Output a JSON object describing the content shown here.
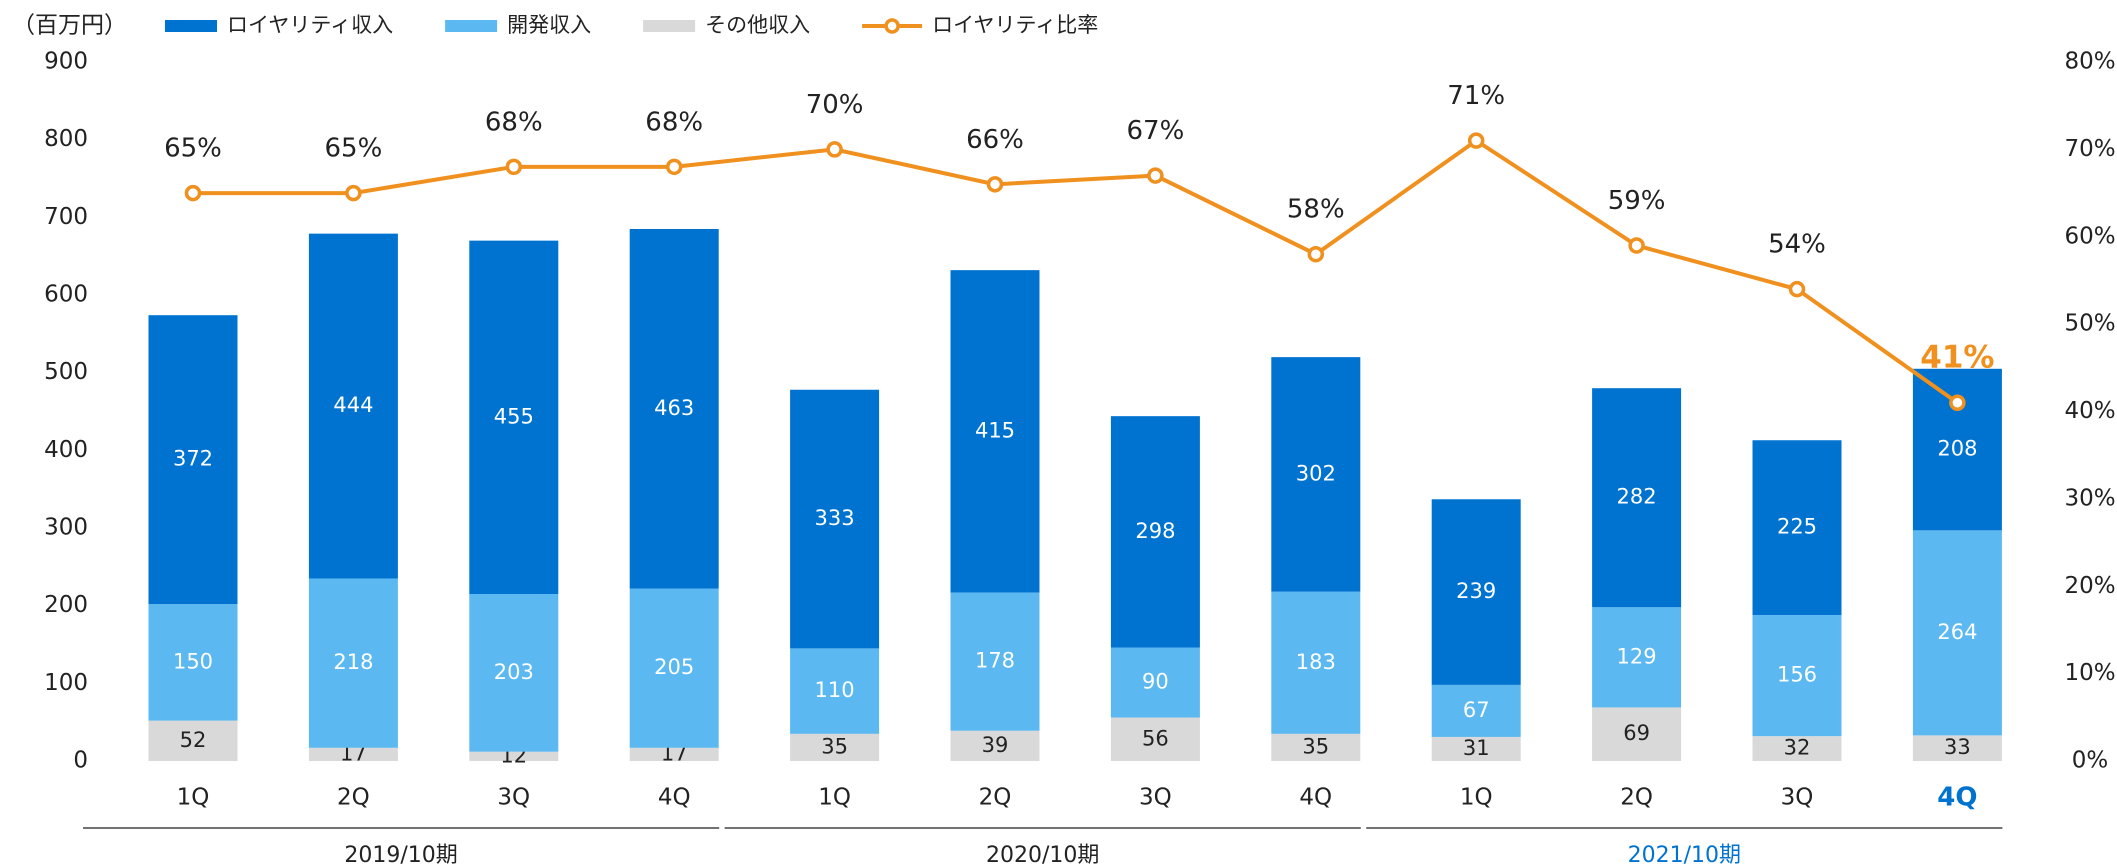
{
  "chart_data": {
    "type": "bar",
    "stacked": true,
    "y_label": "（百万円）",
    "categories": [
      "1Q",
      "2Q",
      "3Q",
      "4Q",
      "1Q",
      "2Q",
      "3Q",
      "4Q",
      "1Q",
      "2Q",
      "3Q",
      "4Q"
    ],
    "groups": [
      "2019/10期",
      "2020/10期",
      "2021/10期"
    ],
    "series": [
      {
        "name": "ロイヤリティ収入",
        "color": "#0073d0",
        "values": [
          372,
          444,
          455,
          463,
          333,
          415,
          298,
          302,
          239,
          282,
          225,
          208
        ]
      },
      {
        "name": "開発収入",
        "color": "#5bb8f0",
        "values": [
          150,
          218,
          203,
          205,
          110,
          178,
          90,
          183,
          67,
          129,
          156,
          264
        ]
      },
      {
        "name": "その他収入",
        "color": "#d9d9d9",
        "values": [
          52,
          17,
          12,
          17,
          35,
          39,
          56,
          35,
          31,
          69,
          32,
          33
        ]
      },
      {
        "name": "ロイヤリティ比率",
        "color": "#f0901e",
        "type": "line",
        "axis": "y2",
        "values": [
          65,
          65,
          68,
          68,
          70,
          66,
          67,
          58,
          71,
          59,
          54,
          41
        ],
        "value_labels": [
          "65%",
          "65%",
          "68%",
          "68%",
          "70%",
          "66%",
          "67%",
          "58%",
          "71%",
          "59%",
          "54%",
          "41%"
        ]
      }
    ],
    "ylim": [
      0,
      900
    ],
    "yticks": [
      0,
      100,
      200,
      300,
      400,
      500,
      600,
      700,
      800,
      900
    ],
    "y2lim": [
      0,
      80
    ],
    "y2ticks": [
      {
        "value": 0,
        "label": "0%"
      },
      {
        "value": 10,
        "label": "10%"
      },
      {
        "value": 20,
        "label": "20%"
      },
      {
        "value": 30,
        "label": "30%"
      },
      {
        "value": 40,
        "label": "40%"
      },
      {
        "value": 50,
        "label": "50%"
      },
      {
        "value": 60,
        "label": "60%"
      },
      {
        "value": 70,
        "label": "70%"
      },
      {
        "value": 80,
        "label": "80%"
      }
    ],
    "grid": false,
    "legend": "top"
  }
}
